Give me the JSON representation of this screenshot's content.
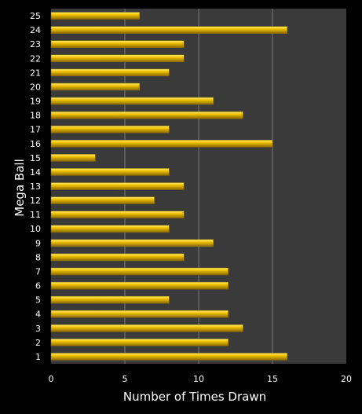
{
  "chart_data": {
    "type": "bar",
    "orientation": "horizontal",
    "title": "",
    "xlabel": "Number of Times Drawn",
    "ylabel": "Mega Ball",
    "categories": [
      "1",
      "2",
      "3",
      "4",
      "5",
      "6",
      "7",
      "8",
      "9",
      "10",
      "11",
      "12",
      "13",
      "14",
      "15",
      "16",
      "17",
      "18",
      "19",
      "20",
      "21",
      "22",
      "23",
      "24",
      "25"
    ],
    "series": [
      {
        "values": [
          16,
          12,
          13,
          12,
          8,
          12,
          12,
          9,
          11,
          8,
          9,
          7,
          9,
          8,
          3,
          15,
          8,
          13,
          11,
          6,
          8,
          9,
          9,
          16,
          6
        ]
      }
    ],
    "xlim": [
      0,
      20
    ],
    "xticks": [
      "0",
      "5",
      "10",
      "15",
      "20"
    ],
    "grid": "vertical",
    "legend": "none",
    "colors": {
      "background": "#000000",
      "plot_background": "#3a3a3a",
      "grid": "#7a7a7a",
      "bar_fill": "#f2c200",
      "bar_highlight": "#fff27a",
      "bar_shadow": "#8a6a00",
      "text": "#ffffff"
    }
  }
}
